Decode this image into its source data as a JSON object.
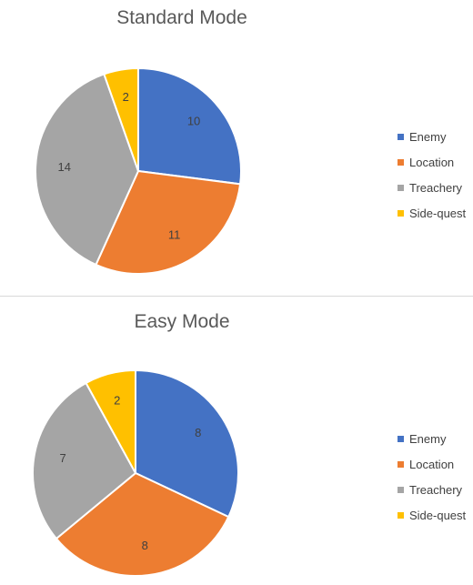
{
  "chart_data": [
    {
      "type": "pie",
      "title": "Standard Mode",
      "categories": [
        "Enemy",
        "Location",
        "Treachery",
        "Side-quest"
      ],
      "values": [
        10,
        11,
        14,
        2
      ],
      "colors": [
        "#4472C4",
        "#ED7D31",
        "#A5A5A5",
        "#FFC000"
      ],
      "legend_position": "right"
    },
    {
      "type": "pie",
      "title": "Easy Mode",
      "categories": [
        "Enemy",
        "Location",
        "Treachery",
        "Side-quest"
      ],
      "values": [
        8,
        8,
        7,
        2
      ],
      "colors": [
        "#4472C4",
        "#ED7D31",
        "#A5A5A5",
        "#FFC000"
      ],
      "legend_position": "right"
    }
  ]
}
